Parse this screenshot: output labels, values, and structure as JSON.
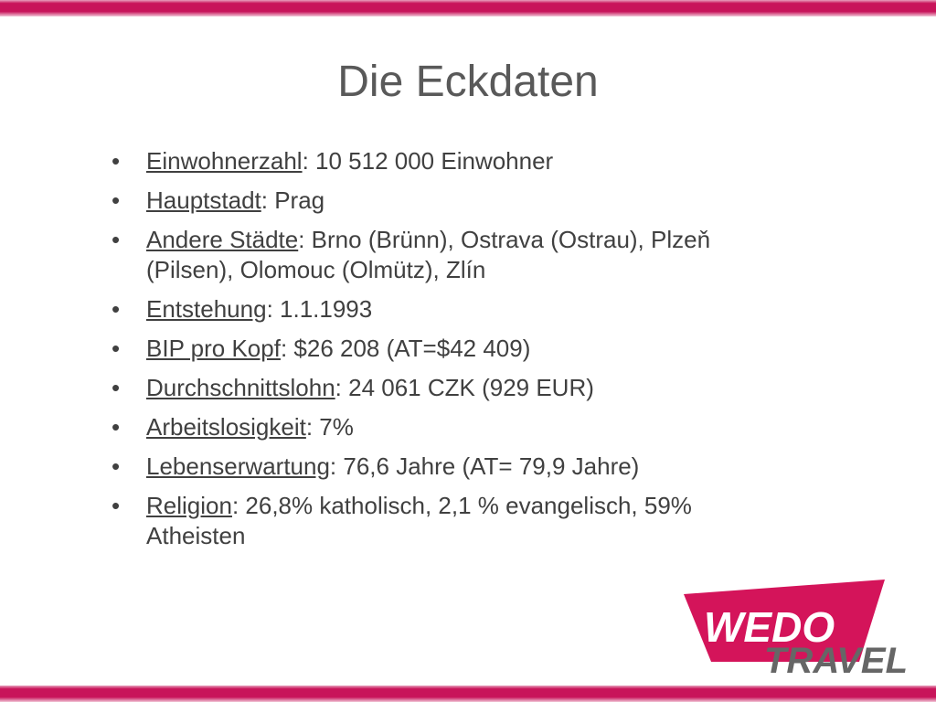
{
  "header": {
    "title": "Die Eckdaten"
  },
  "bullets": [
    {
      "label": "Einwohnerzahl",
      "text": ": 10 512 000 Einwohner"
    },
    {
      "label": "Hauptstadt",
      "text": ": Prag"
    },
    {
      "label": "Andere Städte",
      "text": ": Brno (Brünn), Ostrava (Ostrau), Plzeň (Pilsen), Olomouc (Olmütz), Zlín"
    },
    {
      "label": "Entstehung",
      "text": ": 1.1.1993"
    },
    {
      "label": "BIP pro Kopf",
      "text": ": $26 208 (AT=$42 409)"
    },
    {
      "label": "Durchschnittslohn",
      "text": ": 24 061 CZK (929 EUR)"
    },
    {
      "label": "Arbeitslosigkeit",
      "text": ": 7%"
    },
    {
      "label": "Lebenserwartung",
      "text": ": 76,6 Jahre (AT= 79,9 Jahre)"
    },
    {
      "label": "Religion",
      "text": ": 26,8% katholisch, 2,1 % evangelisch, 59% Atheisten"
    }
  ],
  "logo": {
    "line1": "WEDO",
    "line2": "TRAVEL"
  }
}
